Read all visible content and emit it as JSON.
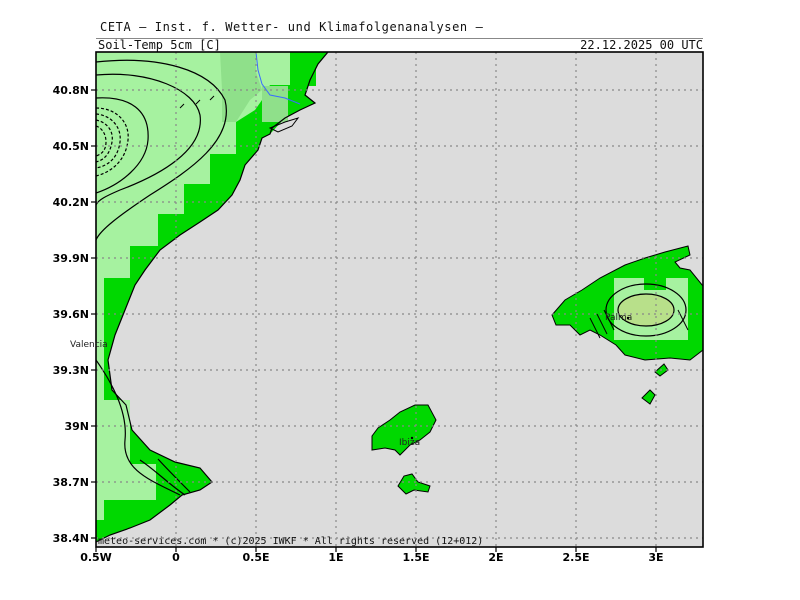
{
  "header": {
    "title": "CETA — Inst. f. Wetter- und Klimafolgenanalysen —",
    "field": "Soil-Temp_5cm_[C]",
    "datetime": "22.12.2025 00 UTC"
  },
  "axes": {
    "lat_labels": [
      "40.8N",
      "40.5N",
      "40.2N",
      "39.9N",
      "39.6N",
      "39.3N",
      "39N",
      "38.7N",
      "38.4N"
    ],
    "lon_labels": [
      "0.5W",
      "0",
      "0.5E",
      "1E",
      "1.5E",
      "2E",
      "2.5E",
      "3E"
    ],
    "grid": true
  },
  "places": {
    "valencia": "Valencia",
    "ibiza": "Ibiza",
    "palma": "Palma"
  },
  "footer": {
    "copyright": "meteo-services.com * (c)2025 IWKF * All rights reserved (12+012)"
  },
  "colors": {
    "sea": "#dcdcdc",
    "land_green": "#00d800",
    "light_green": "#a6f2a0",
    "mid_green": "#8fe08a",
    "olive": "#b8e08a",
    "contour": "#000000"
  }
}
